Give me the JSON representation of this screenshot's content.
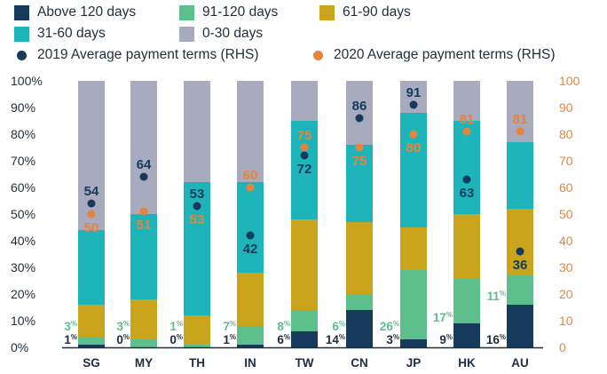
{
  "chart_data": {
    "type": "bar",
    "subtype": "stacked-100-with-dots",
    "categories": [
      "SG",
      "MY",
      "TH",
      "IN",
      "TW",
      "CN",
      "JP",
      "HK",
      "AU"
    ],
    "left_axis": {
      "ticks": [
        "0%",
        "10%",
        "20%",
        "30%",
        "40%",
        "50%",
        "60%",
        "70%",
        "80%",
        "90%",
        "100%"
      ],
      "ylim": [
        0,
        100
      ]
    },
    "right_axis": {
      "ticks": [
        "0",
        "10",
        "20",
        "30",
        "40",
        "50",
        "60",
        "70",
        "80",
        "90",
        "100"
      ],
      "ylim": [
        0,
        100
      ]
    },
    "series": [
      {
        "name": "Above 120 days",
        "color": "#153a5c",
        "values": [
          1,
          0,
          0,
          1,
          6,
          14,
          3,
          9,
          16
        ],
        "labels": [
          "1%",
          "0%",
          "0%",
          "1%",
          "6%",
          "14%",
          "3%",
          "9%",
          "16%"
        ]
      },
      {
        "name": "91-120 days",
        "color": "#5dbf8b",
        "values": [
          3,
          3,
          1,
          7,
          8,
          6,
          26,
          17,
          11
        ],
        "labels": [
          "3%",
          "3%",
          "1%",
          "7%",
          "8%",
          "6%",
          "26%",
          "17%",
          "11%"
        ]
      },
      {
        "name": "61-90 days",
        "color": "#c9a41c",
        "values": [
          12,
          15,
          11,
          20,
          34,
          27,
          16,
          24,
          25
        ]
      },
      {
        "name": "31-60 days",
        "color": "#1db5b9",
        "values": [
          28,
          32,
          50,
          34,
          37,
          29,
          43,
          35,
          25
        ]
      },
      {
        "name": "0-30 days",
        "color": "#a8aabe",
        "values": [
          56,
          50,
          38,
          38,
          15,
          24,
          12,
          15,
          23
        ]
      }
    ],
    "dots": [
      {
        "name": "2019 Average payment terms (RHS)",
        "color": "#153a5c",
        "values": [
          54,
          64,
          53,
          42,
          72,
          86,
          91,
          63,
          36
        ],
        "label_color": "#153a5c"
      },
      {
        "name": "2020 Average payment terms (RHS)",
        "color": "#e8843a",
        "values": [
          50,
          51,
          53,
          60,
          75,
          75,
          80,
          81,
          81
        ],
        "label_color": "#e8843a"
      }
    ],
    "grid": false,
    "legend_position": "top"
  }
}
